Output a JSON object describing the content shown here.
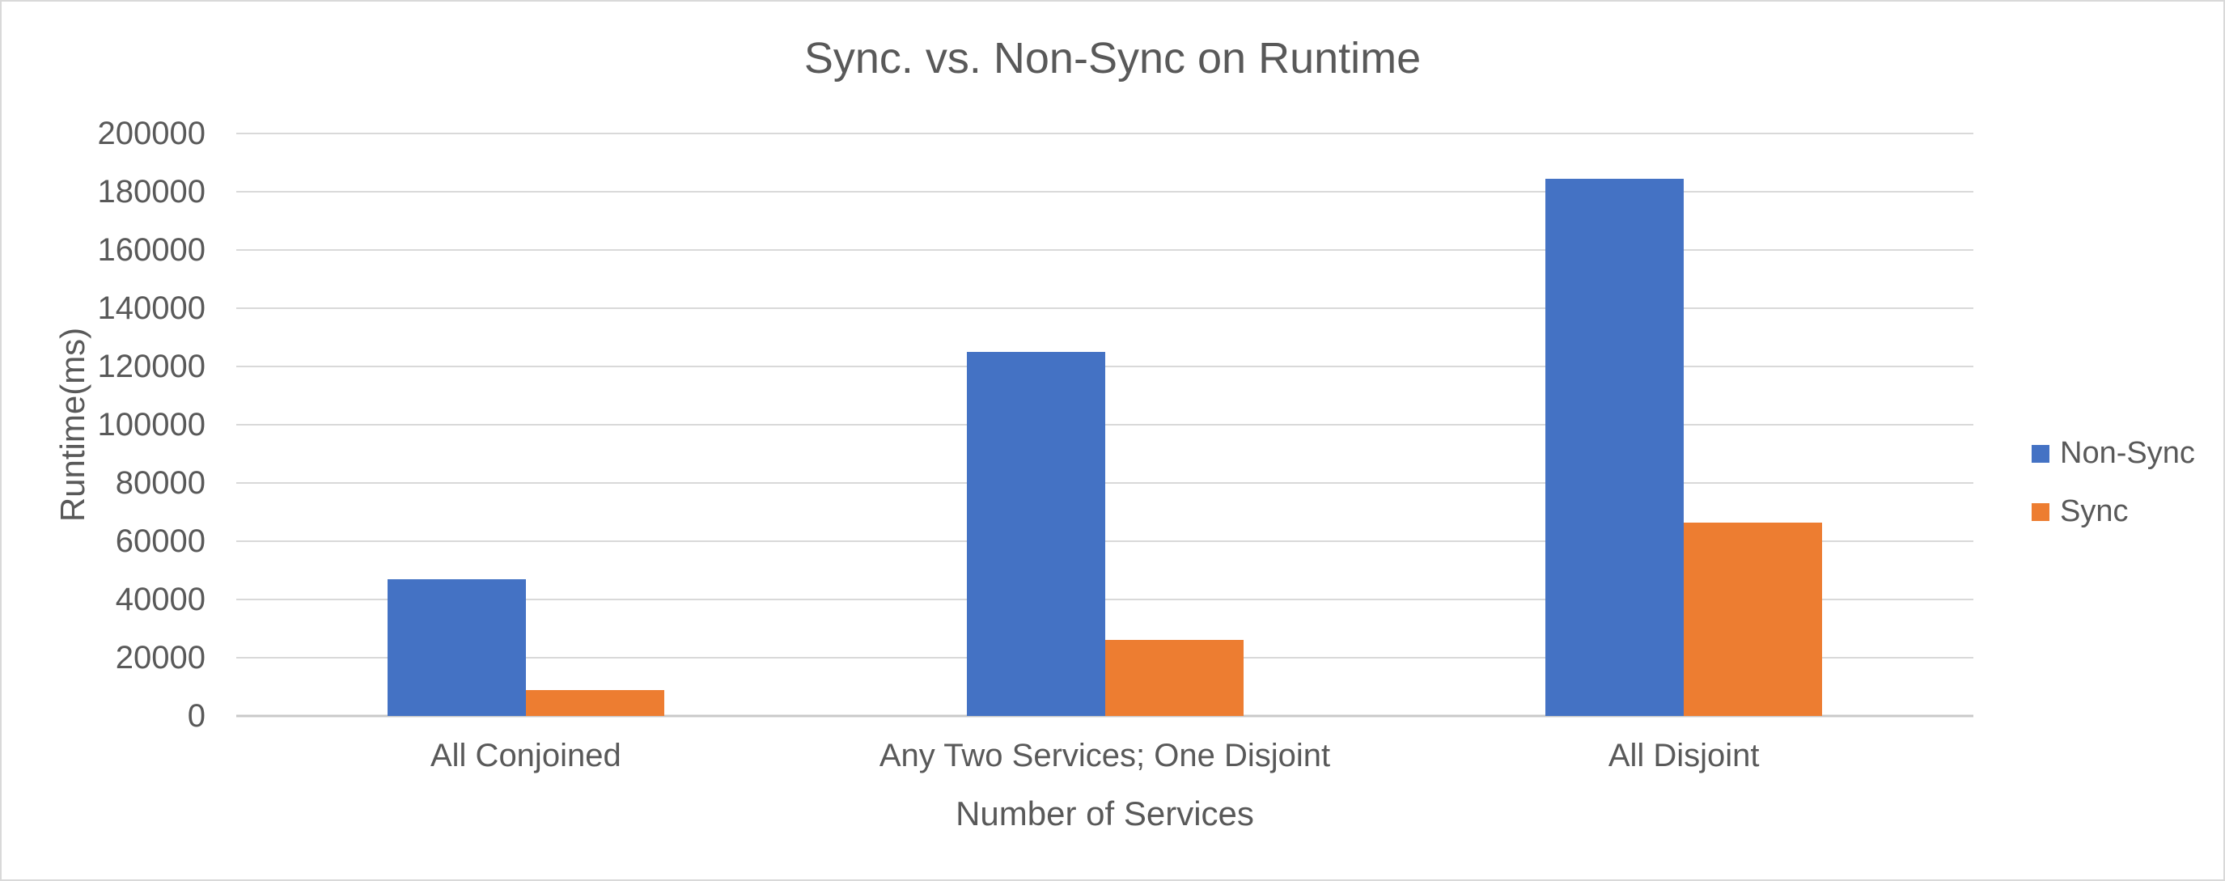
{
  "chart_data": {
    "type": "bar",
    "title": "Sync. vs. Non-Sync on Runtime",
    "xlabel": "Number of Services",
    "ylabel": "Runtime(ms)",
    "categories": [
      "All Conjoined",
      "Any Two Services; One Disjoint",
      "All Disjoint"
    ],
    "series": [
      {
        "name": "Non-Sync",
        "color": "#4472C4",
        "values": [
          47000,
          125000,
          184500
        ]
      },
      {
        "name": "Sync",
        "color": "#ED7D31",
        "values": [
          9000,
          26000,
          66500
        ]
      }
    ],
    "ylim": [
      0,
      200000
    ],
    "ytick_step": 20000,
    "yticks": [
      0,
      20000,
      40000,
      60000,
      80000,
      100000,
      120000,
      140000,
      160000,
      180000,
      200000
    ],
    "grid": "horizontal",
    "legend_position": "right",
    "legend_entries": [
      "Non-Sync",
      "Sync"
    ],
    "colors": {
      "text": "#595959",
      "gridline": "#D9D9D9",
      "axis_line": "#C9C9C9",
      "background": "#FFFFFF",
      "frame_border": "#D9D9D9"
    }
  }
}
